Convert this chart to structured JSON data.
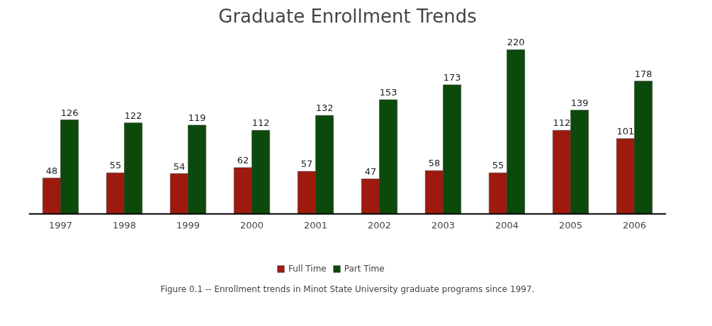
{
  "chart_data": {
    "type": "bar",
    "title": "Graduate Enrollment Trends",
    "categories": [
      "1997",
      "1998",
      "1999",
      "2000",
      "2001",
      "2002",
      "2003",
      "2004",
      "2005",
      "2006"
    ],
    "series": [
      {
        "name": "Full Time",
        "color": "#9e1a0e",
        "values": [
          48,
          55,
          54,
          62,
          57,
          47,
          58,
          55,
          112,
          101
        ]
      },
      {
        "name": "Part Time",
        "color": "#0b4a0b",
        "values": [
          126,
          122,
          119,
          112,
          132,
          153,
          173,
          220,
          139,
          178
        ]
      }
    ],
    "data_labels": true,
    "legend": "bottom",
    "grid": false,
    "annotations": [
      "Figure 0.1 -- Enrollment trends in Minot State University graduate programs since 1997."
    ]
  }
}
